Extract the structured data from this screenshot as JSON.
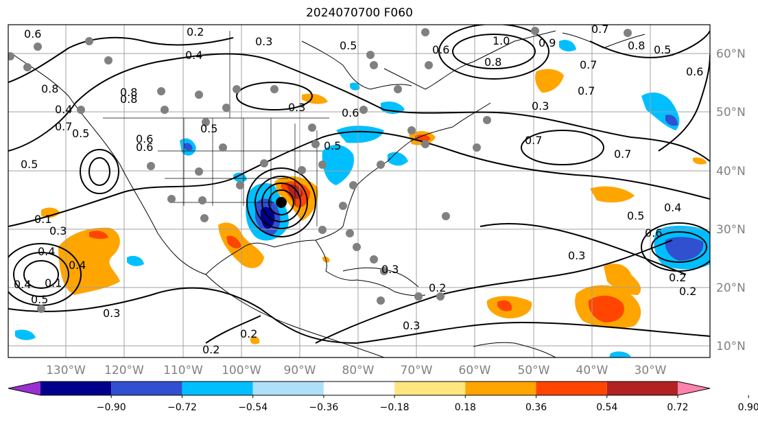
{
  "title": "2024070700 F060",
  "longitude_labels": [
    "130°W",
    "120°W",
    "110°W",
    "100°W",
    "90°W",
    "80°W",
    "70°W",
    "60°W",
    "50°W",
    "40°W",
    "30°W"
  ],
  "latitude_labels": [
    "60°N",
    "50°N",
    "40°N",
    "30°N",
    "20°N",
    "10°N"
  ],
  "colorbar": {
    "ticks": [
      "−0.90",
      "−0.72",
      "−0.54",
      "−0.36",
      "−0.18",
      "0.18",
      "0.36",
      "0.54",
      "0.72",
      "0.90"
    ],
    "colors": [
      "#9b30d0",
      "#00008b",
      "#3050d0",
      "#00bfff",
      "#aee0fa",
      "#ffffff",
      "#ffe680",
      "#ffa500",
      "#ff4500",
      "#b22222",
      "#ff82ab"
    ]
  },
  "contour_labels": [
    "0.6",
    "0.2",
    "0.3",
    "0.3",
    "0.6",
    "0.1",
    "0.4",
    "1.0",
    "0.6",
    "0.8",
    "0.9",
    "0.6",
    "0.7",
    "0.8",
    "0.5",
    "0.7",
    "0.5",
    "0.3",
    "0.5",
    "0.6",
    "0.8",
    "0.7",
    "0.2",
    "0.5",
    "0.4",
    "0.6",
    "0.3",
    "0.3",
    "0.2",
    "0.5",
    "0.4",
    "0.2",
    "0.3",
    "0.2",
    "0.5",
    "0.5",
    "0.7",
    "0.8",
    "0.4",
    "0.5",
    "0.7",
    "0.3",
    "0.2",
    "0.3",
    "0.4",
    "0.8",
    "0.7",
    "0.1",
    "0.6",
    "0.4"
  ],
  "colors": {
    "map_border": "#000000",
    "grid": "#a0a0a0",
    "label_gray": "#808080"
  }
}
